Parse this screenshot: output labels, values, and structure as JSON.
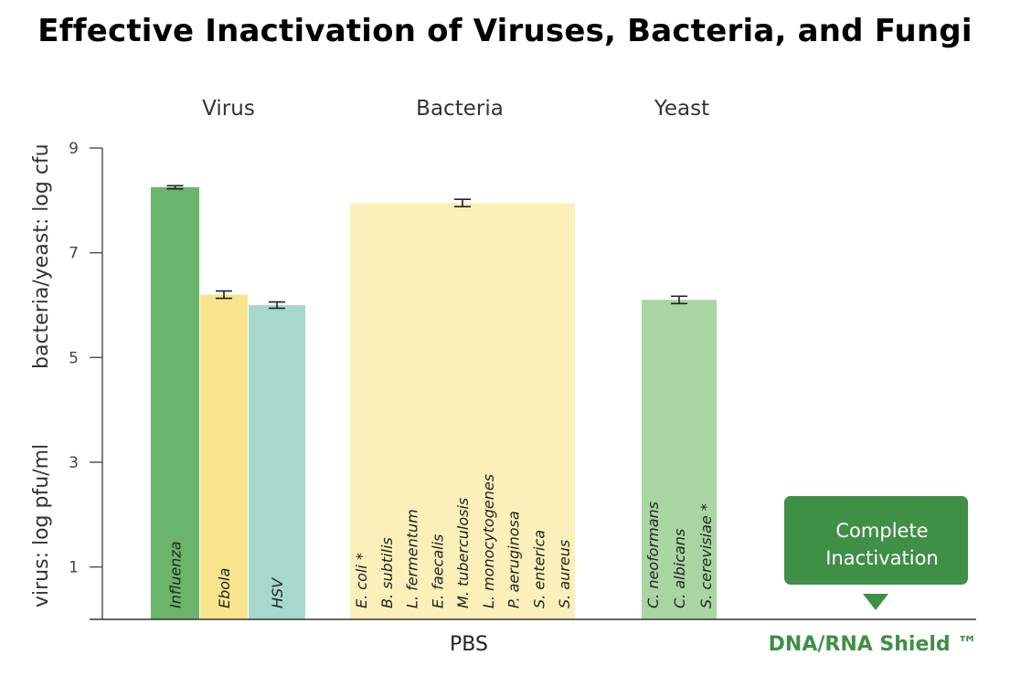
{
  "title": "Effective Inactivation of Viruses, Bacteria, and Fungi",
  "chart_data": {
    "type": "bar",
    "title": "Effective Inactivation of Viruses, Bacteria, and Fungi",
    "ylabel_top": "bacteria/yeast: log cfu",
    "ylabel_bottom": "virus: log pfu/ml",
    "ylim": [
      0,
      9
    ],
    "yticks": [
      1,
      3,
      5,
      7,
      9
    ],
    "groups": [
      "Virus",
      "Bacteria",
      "Yeast"
    ],
    "x_categories": [
      "PBS",
      "DNA/RNA Shield ™"
    ],
    "bars": [
      {
        "group": "Virus",
        "labels": [
          "Influenza"
        ],
        "value": 8.25,
        "error": 0.03,
        "color": "#6ab56b"
      },
      {
        "group": "Virus",
        "labels": [
          "Ebola"
        ],
        "value": 6.2,
        "error": 0.07,
        "color": "#f7e48d"
      },
      {
        "group": "Virus",
        "labels": [
          "HSV"
        ],
        "value": 6.0,
        "error": 0.06,
        "color": "#a7d8cd"
      },
      {
        "group": "Bacteria",
        "labels": [
          "E. coli *",
          "B. subtilis",
          "L. fermentum",
          "E. faecalis",
          "M. tuberculosis",
          "L. monocytogenes",
          "P. aeruginosa",
          "S. enterica",
          "S. aureus"
        ],
        "value": 7.95,
        "error": 0.07,
        "color": "#fbf0ba"
      },
      {
        "group": "Yeast",
        "labels": [
          "C. neoformans",
          "C. albicans",
          "S. cerevisiae *"
        ],
        "value": 6.1,
        "error": 0.07,
        "color": "#a9d5a2"
      }
    ],
    "dna_rna_shield_values": [
      0,
      0,
      0,
      0,
      0
    ],
    "annotation": {
      "lines": [
        "Complete",
        "Inactivation"
      ],
      "color": "#3f8f46"
    },
    "colors": {
      "pbs_label": "#222222",
      "shield_label": "#3f8f46"
    }
  }
}
